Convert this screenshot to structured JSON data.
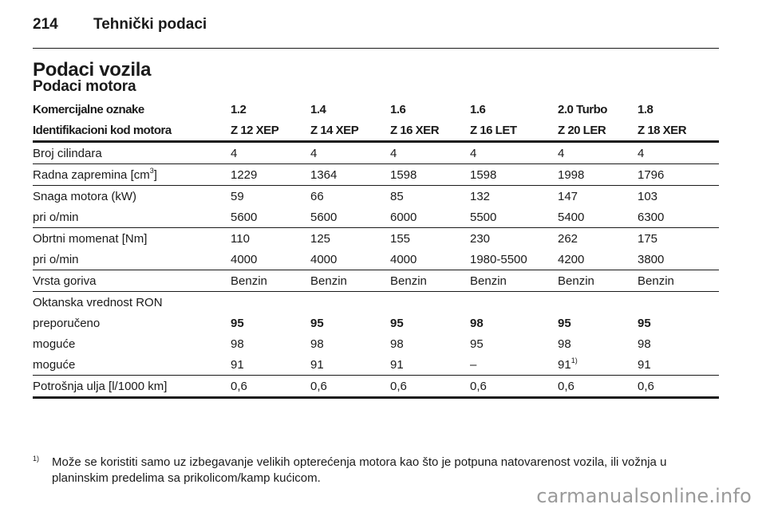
{
  "header": {
    "page_number": "214",
    "section": "Tehnički podaci"
  },
  "title": "Podaci vozila",
  "subtitle": "Podaci motora",
  "table": {
    "head_rows": [
      [
        "Komercijalne oznake",
        "1.2",
        "1.4",
        "1.6",
        "1.6",
        "2.0 Turbo",
        "1.8"
      ],
      [
        "Identifikacioni kod motora",
        "Z 12 XEP",
        "Z 14 XEP",
        "Z 16 XER",
        "Z 16 LET",
        "Z 20 LER",
        "Z 18 XER"
      ]
    ],
    "groups": [
      {
        "rows": [
          {
            "label": "Broj cilindara",
            "values": [
              "4",
              "4",
              "4",
              "4",
              "4",
              "4"
            ]
          }
        ]
      },
      {
        "rows": [
          {
            "label": "Radna zapremina [cm",
            "label_sup": "3",
            "label_suffix": "]",
            "values": [
              "1229",
              "1364",
              "1598",
              "1598",
              "1998",
              "1796"
            ]
          }
        ]
      },
      {
        "rows": [
          {
            "label": "Snaga motora (kW)",
            "values": [
              "59",
              "66",
              "85",
              "132",
              "147",
              "103"
            ]
          },
          {
            "label": "pri o/min",
            "values": [
              "5600",
              "5600",
              "6000",
              "5500",
              "5400",
              "6300"
            ]
          }
        ]
      },
      {
        "rows": [
          {
            "label": "Obrtni momenat [Nm]",
            "values": [
              "110",
              "125",
              "155",
              "230",
              "262",
              "175"
            ]
          },
          {
            "label": "pri o/min",
            "values": [
              "4000",
              "4000",
              "4000",
              "1980-5500",
              "4200",
              "3800"
            ]
          }
        ]
      },
      {
        "rows": [
          {
            "label": "Vrsta goriva",
            "values": [
              "Benzin",
              "Benzin",
              "Benzin",
              "Benzin",
              "Benzin",
              "Benzin"
            ]
          }
        ]
      },
      {
        "rows": [
          {
            "label": "Oktanska vrednost RON",
            "values": [
              "",
              "",
              "",
              "",
              "",
              ""
            ]
          },
          {
            "label": "preporučeno",
            "bold": true,
            "values": [
              "95",
              "95",
              "95",
              "98",
              "95",
              "95"
            ]
          },
          {
            "label": "moguće",
            "values": [
              "98",
              "98",
              "98",
              "95",
              "98",
              "98"
            ]
          },
          {
            "label": "moguće",
            "values": [
              "91",
              "91",
              "91",
              "–",
              "91",
              "91"
            ],
            "value_sups": [
              "",
              "",
              "",
              "",
              "1)",
              ""
            ]
          }
        ]
      },
      {
        "rows": [
          {
            "label": "Potrošnja ulja [l/1000 km]",
            "values": [
              "0,6",
              "0,6",
              "0,6",
              "0,6",
              "0,6",
              "0,6"
            ]
          }
        ]
      }
    ]
  },
  "footnote": {
    "mark": "1)",
    "text": "Može se koristiti samo uz izbegavanje velikih opterećenja motora kao što je potpuna natovarenost vozila, ili vožnja u planinskim predelima sa prikolicom/kamp kućicom."
  },
  "watermark": "carmanualsonline.info"
}
